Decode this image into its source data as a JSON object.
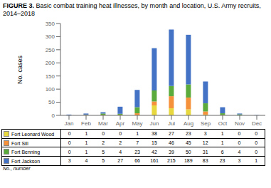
{
  "chart_data": {
    "type": "bar",
    "title": "FIGURE 3.",
    "subtitle": "Basic combat training heat illnesses, by month and location, U.S. Army recruits, 2014–2018",
    "ylabel": "No. cases",
    "annotations": [
      "No., number"
    ],
    "categories": [
      "Jan",
      "Feb",
      "Mar",
      "Apr",
      "May",
      "Jun",
      "Jul",
      "Aug",
      "Sep",
      "Oct",
      "Nov",
      "Dec"
    ],
    "series": [
      {
        "name": "Fort Leonard Wood",
        "color": "#e8d840",
        "values": [
          0,
          1,
          0,
          0,
          1,
          38,
          27,
          23,
          3,
          1,
          0,
          0
        ]
      },
      {
        "name": "Fort Sill",
        "color": "#f4913a",
        "values": [
          0,
          1,
          2,
          2,
          7,
          15,
          46,
          45,
          12,
          1,
          0,
          0
        ]
      },
      {
        "name": "Fort Benning",
        "color": "#5aaa3c",
        "values": [
          0,
          1,
          5,
          4,
          23,
          42,
          39,
          50,
          31,
          6,
          4,
          0
        ]
      },
      {
        "name": "Fort Jackson",
        "color": "#4472c4",
        "values": [
          3,
          4,
          5,
          27,
          66,
          161,
          215,
          189,
          83,
          23,
          3,
          1
        ]
      }
    ],
    "ylim": [
      0,
      350
    ],
    "yticks": [
      0,
      50,
      100,
      150,
      200,
      250,
      300,
      350
    ],
    "stacked": true,
    "grid": false
  }
}
